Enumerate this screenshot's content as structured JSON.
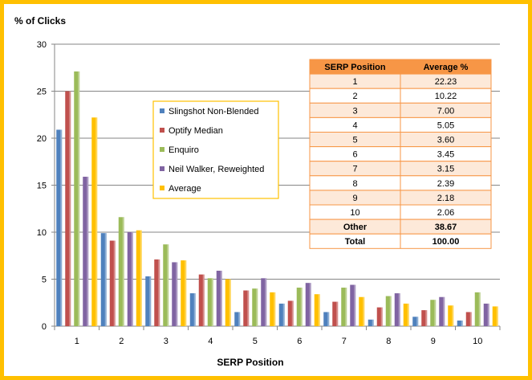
{
  "chart_data": {
    "type": "bar",
    "ylabel": "% of Clicks",
    "xlabel": "SERP Position",
    "ylim": [
      0,
      30
    ],
    "yticks": [
      0,
      5,
      10,
      15,
      20,
      25,
      30
    ],
    "categories": [
      "1",
      "2",
      "3",
      "4",
      "5",
      "6",
      "7",
      "8",
      "9",
      "10"
    ],
    "grid": "horizontal",
    "legend_position": "center-left",
    "series": [
      {
        "name": "Slingshot Non-Blended",
        "color": "#4f81bd",
        "values": [
          20.9,
          9.9,
          5.3,
          3.5,
          1.5,
          2.4,
          1.5,
          0.7,
          1.0,
          0.6
        ]
      },
      {
        "name": "Optify Median",
        "color": "#c0504d",
        "values": [
          25.0,
          9.1,
          7.1,
          5.5,
          3.8,
          2.7,
          2.6,
          2.0,
          1.7,
          1.5
        ]
      },
      {
        "name": "Enquiro",
        "color": "#9bbb59",
        "values": [
          27.1,
          11.6,
          8.7,
          5.1,
          4.0,
          4.1,
          4.1,
          3.2,
          2.8,
          3.6
        ]
      },
      {
        "name": "Neil Walker, Reweighted",
        "color": "#8064a2",
        "values": [
          15.9,
          10.0,
          6.8,
          5.9,
          5.1,
          4.6,
          4.4,
          3.5,
          3.1,
          2.4
        ]
      },
      {
        "name": "Average",
        "color": "#ffc000",
        "values": [
          22.2,
          10.2,
          7.0,
          5.0,
          3.6,
          3.4,
          3.1,
          2.4,
          2.2,
          2.1
        ]
      }
    ],
    "table": {
      "headers": [
        "SERP Position",
        "Average %"
      ],
      "rows": [
        [
          "1",
          "22.23"
        ],
        [
          "2",
          "10.22"
        ],
        [
          "3",
          "7.00"
        ],
        [
          "4",
          "5.05"
        ],
        [
          "5",
          "3.60"
        ],
        [
          "6",
          "3.45"
        ],
        [
          "7",
          "3.15"
        ],
        [
          "8",
          "2.39"
        ],
        [
          "9",
          "2.18"
        ],
        [
          "10",
          "2.06"
        ]
      ],
      "other": [
        "Other",
        "38.67"
      ],
      "total": [
        "Total",
        "100.00"
      ],
      "header_color": "#f79646",
      "odd_row_color": "#fde9d9",
      "even_row_color": "#ffffff"
    }
  }
}
